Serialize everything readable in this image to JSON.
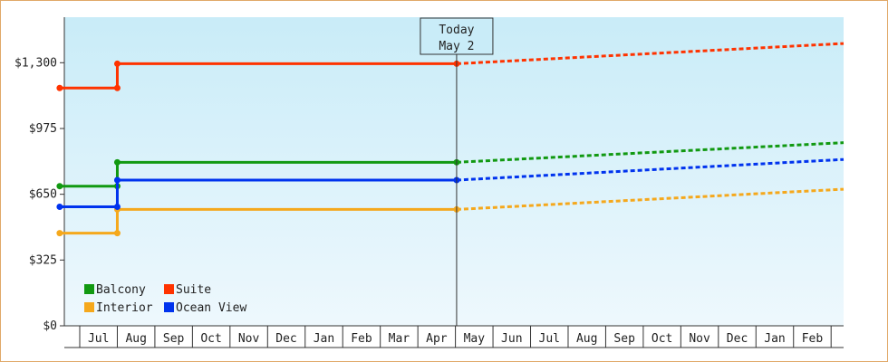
{
  "chart_data": {
    "type": "line",
    "y_ticks": [
      "$0",
      "$325",
      "$650",
      "$975",
      "$1,300"
    ],
    "y_tick_values": [
      0,
      325,
      650,
      975,
      1300
    ],
    "ylim": [
      0,
      1525
    ],
    "months": [
      "Jul",
      "Aug",
      "Sep",
      "Oct",
      "Nov",
      "Dec",
      "Jan",
      "Feb",
      "Mar",
      "Apr",
      "May",
      "Jun",
      "Jul",
      "Aug",
      "Sep",
      "Oct",
      "Nov",
      "Dec",
      "Jan",
      "Feb"
    ],
    "xlim": [
      "Jun 15",
      "Feb 28 (following year)"
    ],
    "today_marker": {
      "line1": "Today",
      "line2": "May 2",
      "position": "May 2"
    },
    "grid": false,
    "legend_position": "bottom-left",
    "series": [
      {
        "name": "Balcony",
        "color": "#119911",
        "points": [
          [
            "Jun 15",
            690
          ],
          [
            "Aug 1",
            690
          ],
          [
            "Aug 1",
            808
          ],
          [
            "May 2",
            808
          ]
        ],
        "projection": [
          [
            "May 2",
            808
          ],
          [
            "Feb 28",
            905
          ]
        ]
      },
      {
        "name": "Suite",
        "color": "#ff3300",
        "points": [
          [
            "Jun 15",
            1175
          ],
          [
            "Aug 1",
            1175
          ],
          [
            "Aug 1",
            1295
          ],
          [
            "May 2",
            1295
          ]
        ],
        "projection": [
          [
            "May 2",
            1295
          ],
          [
            "Feb 28",
            1395
          ]
        ]
      },
      {
        "name": "Interior",
        "color": "#f5a81c",
        "points": [
          [
            "Jun 15",
            458
          ],
          [
            "Aug 1",
            458
          ],
          [
            "Aug 1",
            575
          ],
          [
            "May 2",
            575
          ]
        ],
        "projection": [
          [
            "May 2",
            575
          ],
          [
            "Feb 28",
            675
          ]
        ]
      },
      {
        "name": "Ocean View",
        "color": "#0033ee",
        "points": [
          [
            "Jun 15",
            588
          ],
          [
            "Aug 1",
            588
          ],
          [
            "Aug 1",
            720
          ],
          [
            "May 2",
            720
          ]
        ],
        "projection": [
          [
            "May 2",
            720
          ],
          [
            "Feb 28",
            822
          ]
        ]
      }
    ]
  }
}
